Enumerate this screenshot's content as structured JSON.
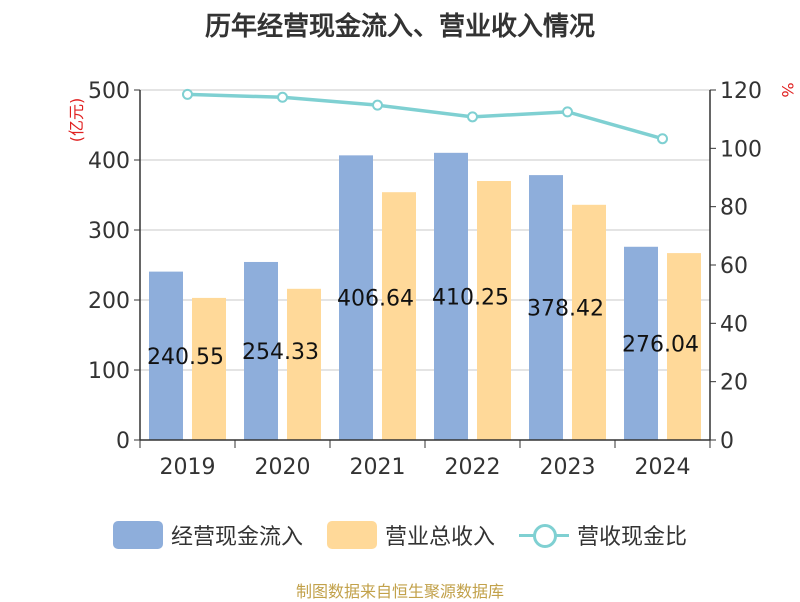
{
  "chart_data": {
    "type": "bar",
    "title": "历年经营现金流入、营业收入情况",
    "categories": [
      "2019",
      "2020",
      "2021",
      "2022",
      "2023",
      "2024"
    ],
    "y_left_label": "(亿元)",
    "y_right_label": "%",
    "y_left_range": [
      0,
      500
    ],
    "y_left_ticks": [
      0,
      100,
      200,
      300,
      400,
      500
    ],
    "y_right_range": [
      0,
      120
    ],
    "y_right_ticks": [
      0,
      20,
      40,
      60,
      80,
      100,
      120
    ],
    "series": [
      {
        "name": "经营现金流入",
        "type": "bar",
        "axis": "left",
        "color": "#8eaedb",
        "values": [
          240.55,
          254.33,
          406.64,
          410.25,
          378.42,
          276.04
        ],
        "labels": [
          "240.55",
          "254.33",
          "406.64",
          "410.25",
          "378.42",
          "276.04"
        ]
      },
      {
        "name": "营业总收入",
        "type": "bar",
        "axis": "left",
        "color": "#ffd999",
        "values": [
          203,
          216,
          354,
          370,
          336,
          267
        ]
      },
      {
        "name": "营收现金比",
        "type": "line",
        "axis": "right",
        "color": "#7fd0d2",
        "values": [
          118.5,
          117.5,
          114.8,
          110.8,
          112.5,
          103.3
        ]
      }
    ],
    "legend_position": "bottom",
    "grid": true
  },
  "source": "制图数据来自恒生聚源数据库"
}
